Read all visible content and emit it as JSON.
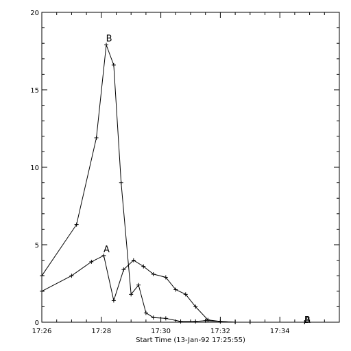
{
  "chart_data": {
    "type": "line",
    "title": "",
    "xlabel": "Start Time (13-Jan-92 17:25:55)",
    "ylabel": "",
    "x_unit": "minutes",
    "xlim": [
      "17:26",
      "17:36"
    ],
    "ylim": [
      0,
      20
    ],
    "xticks": [
      "17:26",
      "17:28",
      "17:30",
      "17:32",
      "17:34"
    ],
    "yticks": [
      0,
      5,
      10,
      15,
      20
    ],
    "grid": false,
    "series": [
      {
        "name": "A",
        "x": [
          "17:26:00",
          "17:27:00",
          "17:27:40",
          "17:28:05",
          "17:28:25",
          "17:28:45",
          "17:29:05",
          "17:29:25",
          "17:29:45",
          "17:30:10",
          "17:30:30",
          "17:30:50",
          "17:31:10",
          "17:31:35",
          "17:32:00",
          "17:32:30",
          "17:33:00",
          "17:34:50"
        ],
        "y": [
          2.0,
          3.0,
          3.9,
          4.3,
          1.4,
          3.4,
          4.0,
          3.6,
          3.1,
          2.9,
          2.1,
          1.8,
          1.0,
          0.15,
          0.05,
          0.0,
          0.0,
          0.0
        ]
      },
      {
        "name": "B",
        "x": [
          "17:26:00",
          "17:27:10",
          "17:27:50",
          "17:28:10",
          "17:28:25",
          "17:28:40",
          "17:29:00",
          "17:29:15",
          "17:29:30",
          "17:29:45",
          "17:30:10",
          "17:30:40",
          "17:31:10",
          "17:31:30",
          "17:32:00",
          "17:32:30",
          "17:33:00",
          "17:34:50"
        ],
        "y": [
          3.0,
          6.3,
          11.9,
          17.9,
          16.6,
          9.0,
          1.8,
          2.4,
          0.6,
          0.3,
          0.25,
          0.05,
          0.05,
          0.1,
          0.05,
          0.0,
          0.0,
          0.0
        ]
      }
    ]
  }
}
